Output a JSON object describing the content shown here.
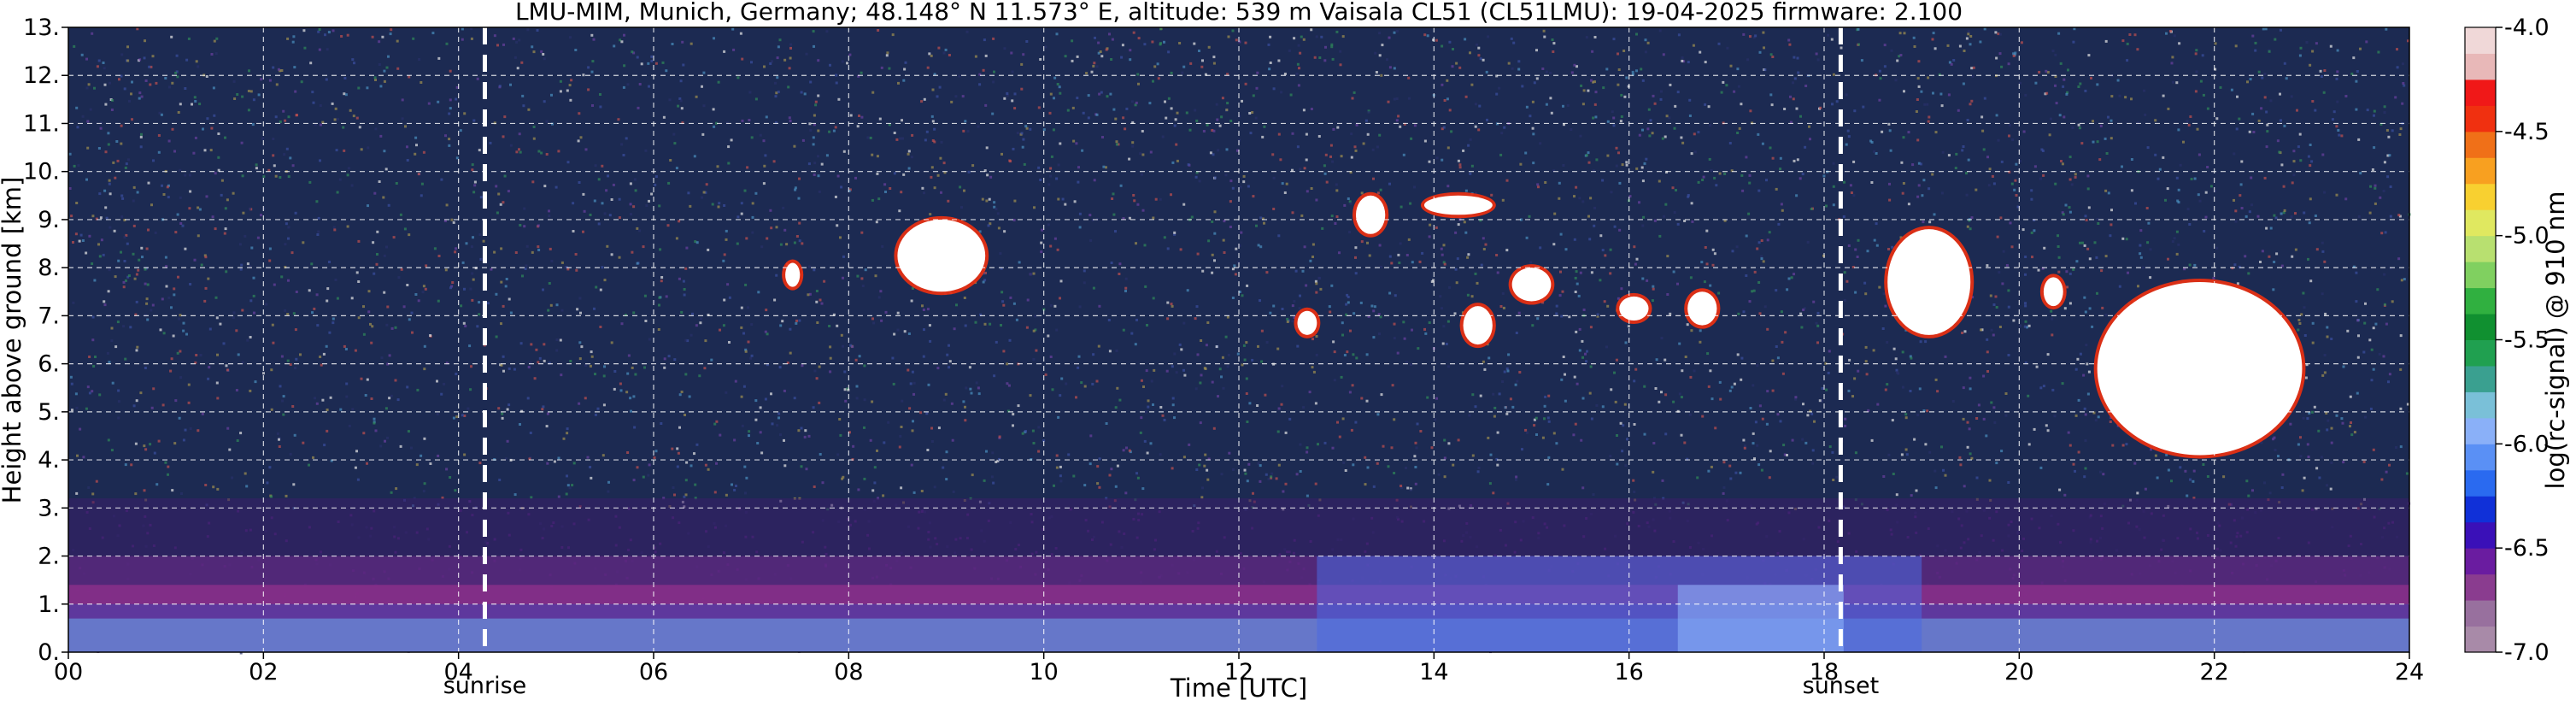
{
  "chart_data": {
    "type": "heatmap",
    "title": "LMU-MIM, Munich, Germany; 48.148° N 11.573° E, altitude: 539 m    Vaisala CL51 (CL51LMU): 19-04-2025    firmware: 2.100",
    "xlabel": "Time [UTC]",
    "ylabel": "Height above ground [km]",
    "colorbar_label": "log(rc-signal) @ 910 nm",
    "xlim": [
      0,
      24
    ],
    "ylim": [
      0,
      13
    ],
    "x_ticks": [
      0,
      2,
      4,
      6,
      8,
      10,
      12,
      14,
      16,
      18,
      20,
      22,
      24
    ],
    "x_tick_labels": [
      "00",
      "02",
      "04",
      "06",
      "08",
      "10",
      "12",
      "14",
      "16",
      "18",
      "20",
      "22",
      "24"
    ],
    "y_ticks": [
      0,
      1,
      2,
      3,
      4,
      5,
      6,
      7,
      8,
      9,
      10,
      11,
      12,
      13
    ],
    "y_tick_labels": [
      "0.",
      "1.",
      "2.",
      "3.",
      "4.",
      "5.",
      "6.",
      "7.",
      "8.",
      "9.",
      "10.",
      "11.",
      "12.",
      "13."
    ],
    "grid": true,
    "colorbar": {
      "range": [
        -7.0,
        -4.0
      ],
      "ticks": [
        -7.0,
        -6.5,
        -6.0,
        -5.5,
        -5.0,
        -4.5,
        -4.0
      ],
      "tick_labels": [
        "-7.0",
        "-6.5",
        "-6.0",
        "-5.5",
        "-5.0",
        "-4.5",
        "-4.0"
      ],
      "colors": [
        "#a88aa8",
        "#98709e",
        "#8a3c8f",
        "#6a1ca0",
        "#3a10b8",
        "#1030d8",
        "#2a6af0",
        "#5a90f5",
        "#8ab0f8",
        "#7ac0d8",
        "#3aa090",
        "#20a050",
        "#109030",
        "#30b040",
        "#80d060",
        "#b8e070",
        "#e0e860",
        "#f8d030",
        "#f8a020",
        "#f07018",
        "#f03010",
        "#f01818",
        "#e8b8b8",
        "#f0d8d8"
      ]
    },
    "markers": [
      {
        "label": "sunrise",
        "x": 4.27
      },
      {
        "label": "sunset",
        "x": 18.17
      }
    ],
    "features": [
      {
        "description": "boundary-layer aerosol",
        "x_range": [
          0,
          24
        ],
        "height_km": [
          0,
          1.4
        ]
      },
      {
        "description": "cloud",
        "x_range": [
          8.5,
          9.4
        ],
        "height_km": [
          7.5,
          9.0
        ]
      },
      {
        "description": "cloud",
        "x_range": [
          7.35,
          7.5
        ],
        "height_km": [
          7.6,
          8.1
        ]
      },
      {
        "description": "cloud",
        "x_range": [
          12.6,
          12.8
        ],
        "height_km": [
          6.6,
          7.1
        ]
      },
      {
        "description": "cloud",
        "x_range": [
          13.2,
          13.5
        ],
        "height_km": [
          8.7,
          9.5
        ]
      },
      {
        "description": "cloud",
        "x_range": [
          13.9,
          14.6
        ],
        "height_km": [
          9.1,
          9.5
        ]
      },
      {
        "description": "cloud",
        "x_range": [
          14.3,
          14.6
        ],
        "height_km": [
          6.4,
          7.2
        ]
      },
      {
        "description": "cloud",
        "x_range": [
          14.8,
          15.2
        ],
        "height_km": [
          7.3,
          8.0
        ]
      },
      {
        "description": "cloud",
        "x_range": [
          15.9,
          16.2
        ],
        "height_km": [
          6.9,
          7.4
        ]
      },
      {
        "description": "cloud",
        "x_range": [
          16.6,
          16.9
        ],
        "height_km": [
          6.8,
          7.5
        ]
      },
      {
        "description": "cloud",
        "x_range": [
          18.65,
          19.5
        ],
        "height_km": [
          6.6,
          8.8
        ]
      },
      {
        "description": "cloud",
        "x_range": [
          20.25,
          20.45
        ],
        "height_km": [
          7.2,
          7.8
        ]
      },
      {
        "description": "cloud",
        "x_range": [
          20.8,
          22.9
        ],
        "height_km": [
          4.1,
          7.7
        ]
      }
    ]
  }
}
